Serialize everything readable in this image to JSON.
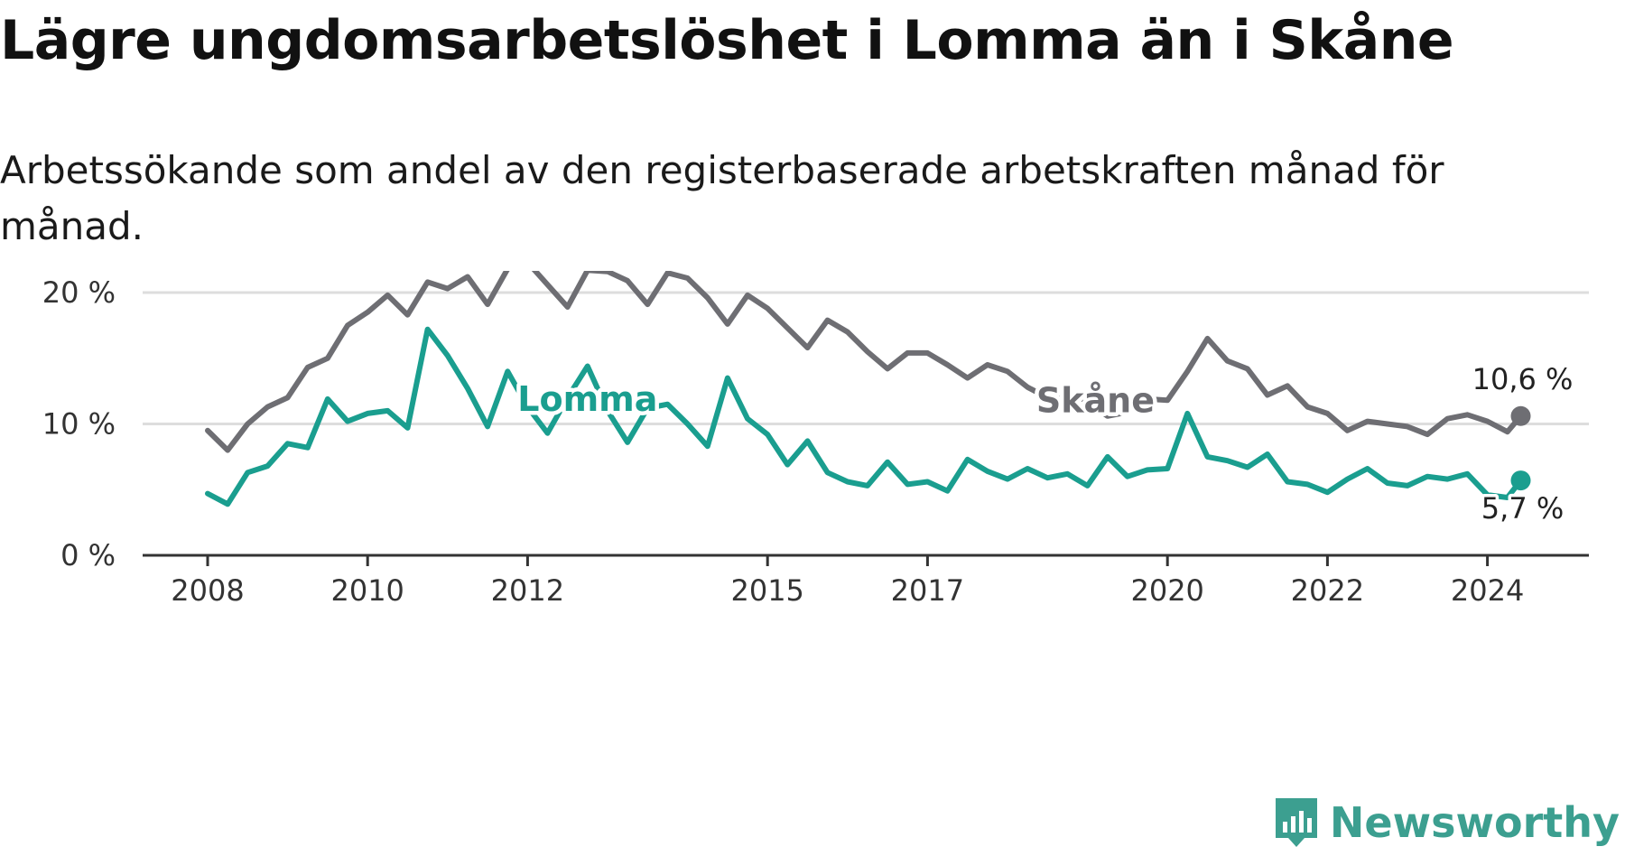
{
  "header": {
    "title": "Lägre ungdomsarbetslöshet i Lomma än i Skåne",
    "subtitle": "Arbetssökande som andel av den registerbaserade arbetskraften månad för månad."
  },
  "brand": {
    "name": "Newsworthy",
    "color": "#3c9f90"
  },
  "chart_data": {
    "type": "line",
    "title": "Lägre ungdomsarbetslöshet i Lomma än i Skåne",
    "subtitle": "Arbetssökande som andel av den registerbaserade arbetskraften månad för månad.",
    "x_ticks": [
      "2008",
      "2010",
      "2012",
      "2015",
      "2017",
      "2020",
      "2022",
      "2024"
    ],
    "y_ticks": [
      "0 %",
      "10 %",
      "20 %"
    ],
    "ylim": [
      0,
      20
    ],
    "grid": true,
    "legend": "inline labels",
    "series": [
      {
        "name": "Skåne",
        "color": "#6e6e73",
        "end_label": "10,6 %",
        "points": [
          [
            "2008-01",
            9.5
          ],
          [
            "2008-04",
            8.0
          ],
          [
            "2008-07",
            10.0
          ],
          [
            "2008-10",
            11.3
          ],
          [
            "2009-01",
            12.0
          ],
          [
            "2009-04",
            14.3
          ],
          [
            "2009-07",
            15.0
          ],
          [
            "2009-10",
            17.5
          ],
          [
            "2010-01",
            18.5
          ],
          [
            "2010-04",
            19.8
          ],
          [
            "2010-07",
            18.3
          ],
          [
            "2010-10",
            20.8
          ],
          [
            "2011-01",
            20.3
          ],
          [
            "2011-04",
            21.2
          ],
          [
            "2011-07",
            19.1
          ],
          [
            "2011-10",
            21.8
          ],
          [
            "2012-01",
            22.3
          ],
          [
            "2012-04",
            20.6
          ],
          [
            "2012-07",
            18.9
          ],
          [
            "2012-10",
            21.7
          ],
          [
            "2013-01",
            21.6
          ],
          [
            "2013-04",
            20.9
          ],
          [
            "2013-07",
            19.1
          ],
          [
            "2013-10",
            21.5
          ],
          [
            "2014-01",
            21.1
          ],
          [
            "2014-04",
            19.6
          ],
          [
            "2014-07",
            17.6
          ],
          [
            "2014-10",
            19.8
          ],
          [
            "2015-01",
            18.8
          ],
          [
            "2015-04",
            17.3
          ],
          [
            "2015-07",
            15.8
          ],
          [
            "2015-10",
            17.9
          ],
          [
            "2016-01",
            17.0
          ],
          [
            "2016-04",
            15.5
          ],
          [
            "2016-07",
            14.2
          ],
          [
            "2016-10",
            15.4
          ],
          [
            "2017-01",
            15.4
          ],
          [
            "2017-04",
            14.5
          ],
          [
            "2017-07",
            13.5
          ],
          [
            "2017-10",
            14.5
          ],
          [
            "2018-01",
            14.0
          ],
          [
            "2018-04",
            12.8
          ],
          [
            "2018-07",
            12.0
          ],
          [
            "2018-10",
            12.5
          ],
          [
            "2019-01",
            11.7
          ],
          [
            "2019-04",
            10.6
          ],
          [
            "2019-07",
            10.9
          ],
          [
            "2019-10",
            11.9
          ],
          [
            "2020-01",
            11.8
          ],
          [
            "2020-04",
            14.0
          ],
          [
            "2020-07",
            16.5
          ],
          [
            "2020-10",
            14.8
          ],
          [
            "2021-01",
            14.2
          ],
          [
            "2021-04",
            12.2
          ],
          [
            "2021-07",
            12.9
          ],
          [
            "2021-10",
            11.3
          ],
          [
            "2022-01",
            10.8
          ],
          [
            "2022-04",
            9.5
          ],
          [
            "2022-07",
            10.2
          ],
          [
            "2022-10",
            10.0
          ],
          [
            "2023-01",
            9.8
          ],
          [
            "2023-04",
            9.2
          ],
          [
            "2023-07",
            10.4
          ],
          [
            "2023-10",
            10.7
          ],
          [
            "2024-01",
            10.2
          ],
          [
            "2024-04",
            9.4
          ],
          [
            "2024-06",
            10.6
          ]
        ]
      },
      {
        "name": "Lomma",
        "color": "#1a9e8f",
        "end_label": "5,7 %",
        "points": [
          [
            "2008-01",
            4.7
          ],
          [
            "2008-04",
            3.9
          ],
          [
            "2008-07",
            6.3
          ],
          [
            "2008-10",
            6.8
          ],
          [
            "2009-01",
            8.5
          ],
          [
            "2009-04",
            8.2
          ],
          [
            "2009-07",
            11.9
          ],
          [
            "2009-10",
            10.2
          ],
          [
            "2010-01",
            10.8
          ],
          [
            "2010-04",
            11.0
          ],
          [
            "2010-07",
            9.7
          ],
          [
            "2010-10",
            17.2
          ],
          [
            "2011-01",
            15.2
          ],
          [
            "2011-04",
            12.7
          ],
          [
            "2011-07",
            9.8
          ],
          [
            "2011-10",
            14.0
          ],
          [
            "2012-01",
            11.3
          ],
          [
            "2012-04",
            9.3
          ],
          [
            "2012-07",
            12.0
          ],
          [
            "2012-10",
            14.4
          ],
          [
            "2013-01",
            11.0
          ],
          [
            "2013-04",
            8.6
          ],
          [
            "2013-07",
            11.2
          ],
          [
            "2013-10",
            11.5
          ],
          [
            "2014-01",
            10.0
          ],
          [
            "2014-04",
            8.3
          ],
          [
            "2014-07",
            13.5
          ],
          [
            "2014-10",
            10.4
          ],
          [
            "2015-01",
            9.2
          ],
          [
            "2015-04",
            6.9
          ],
          [
            "2015-07",
            8.7
          ],
          [
            "2015-10",
            6.3
          ],
          [
            "2016-01",
            5.6
          ],
          [
            "2016-04",
            5.3
          ],
          [
            "2016-07",
            7.1
          ],
          [
            "2016-10",
            5.4
          ],
          [
            "2017-01",
            5.6
          ],
          [
            "2017-04",
            4.9
          ],
          [
            "2017-07",
            7.3
          ],
          [
            "2017-10",
            6.4
          ],
          [
            "2018-01",
            5.8
          ],
          [
            "2018-04",
            6.6
          ],
          [
            "2018-07",
            5.9
          ],
          [
            "2018-10",
            6.2
          ],
          [
            "2019-01",
            5.3
          ],
          [
            "2019-04",
            7.5
          ],
          [
            "2019-07",
            6.0
          ],
          [
            "2019-10",
            6.5
          ],
          [
            "2020-01",
            6.6
          ],
          [
            "2020-04",
            10.8
          ],
          [
            "2020-07",
            7.5
          ],
          [
            "2020-10",
            7.2
          ],
          [
            "2021-01",
            6.7
          ],
          [
            "2021-04",
            7.7
          ],
          [
            "2021-07",
            5.6
          ],
          [
            "2021-10",
            5.4
          ],
          [
            "2022-01",
            4.8
          ],
          [
            "2022-04",
            5.8
          ],
          [
            "2022-07",
            6.6
          ],
          [
            "2022-10",
            5.5
          ],
          [
            "2023-01",
            5.3
          ],
          [
            "2023-04",
            6.0
          ],
          [
            "2023-07",
            5.8
          ],
          [
            "2023-10",
            6.2
          ],
          [
            "2024-01",
            4.6
          ],
          [
            "2024-04",
            4.4
          ],
          [
            "2024-06",
            5.7
          ]
        ]
      }
    ]
  }
}
